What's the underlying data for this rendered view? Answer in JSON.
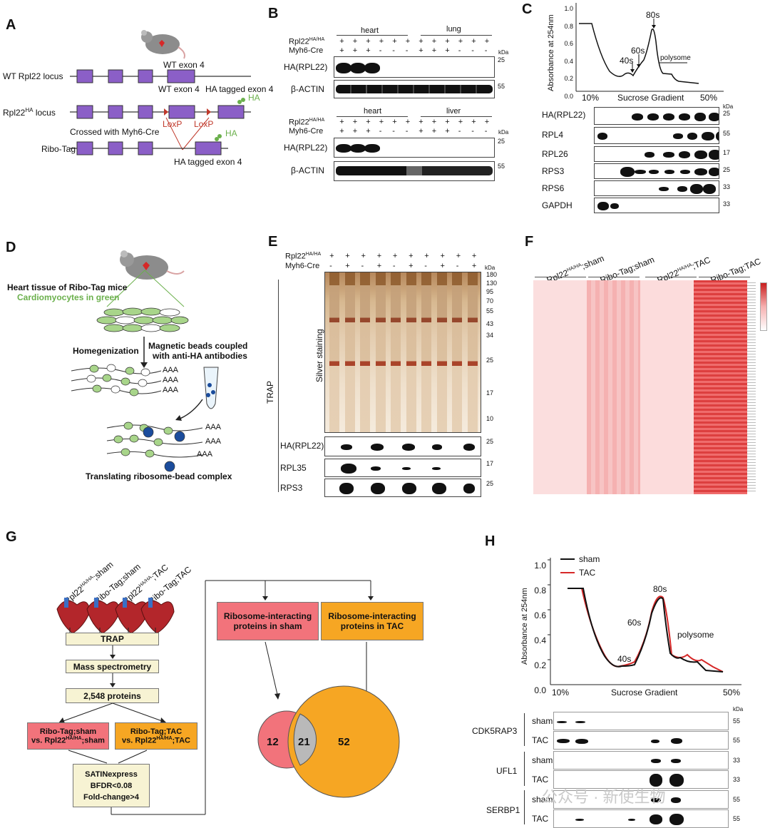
{
  "panels": {
    "A": "A",
    "B": "B",
    "C": "C",
    "D": "D",
    "E": "E",
    "F": "F",
    "G": "G",
    "H": "H"
  },
  "A": {
    "wt_locus": "WT Rpl22 locus",
    "ha_locus_pre": "Rpl22",
    "ha_locus_sup": "HA",
    "ha_locus_post": " locus",
    "wt_exon4_top": "WT exon 4",
    "wt_exon4": "WT exon 4",
    "ha_exon4": "HA tagged exon 4",
    "ha": "HA",
    "loxp": "LoxP",
    "crossed": "Crossed with Myh6-Cre",
    "ribotag": "Ribo-Tag",
    "ha_exon4_bottom": "HA tagged exon 4"
  },
  "B": {
    "genotype_pre": "Rpl22",
    "genotype_sup": "HA/HA",
    "cre": "Myh6-Cre",
    "top_tissue1": "heart",
    "top_tissue2": "lung",
    "bot_tissue1": "heart",
    "bot_tissue2": "liver",
    "signs_genotype": [
      "+",
      "+",
      "+",
      "+",
      "+",
      "+",
      "+",
      "+",
      "+",
      "+",
      "+",
      "+"
    ],
    "signs_cre": [
      "+",
      "+",
      "+",
      "-",
      "-",
      "-",
      "+",
      "+",
      "+",
      "-",
      "-",
      "-"
    ],
    "rows": [
      "HA(RPL22)",
      "β-ACTIN"
    ],
    "kda": "kDa",
    "m25": "25",
    "m55": "55"
  },
  "C": {
    "ylabel": "Absorbance at 254nm",
    "yticks": [
      "1.0",
      "0.8",
      "0.6",
      "0.4",
      "0.2",
      "0.0"
    ],
    "x_left": "10%",
    "x_mid": "Sucrose Gradient",
    "x_right": "50%",
    "peaks": [
      "40s",
      "60s",
      "80s",
      "polysome"
    ],
    "rows": [
      "HA(RPL22)",
      "RPL4",
      "RPL26",
      "RPS3",
      "RPS6",
      "GAPDH"
    ],
    "markers": [
      "25",
      "55",
      "17",
      "25",
      "33",
      "33"
    ],
    "kda": "kDa"
  },
  "D": {
    "title": "Heart tissue of Ribo-Tag mice",
    "subtitle": "Cardiomyocytes in green",
    "homogenization": "Homegenization",
    "beads": "Magnetic beads coupled",
    "beads2": "with anti-HA antibodies",
    "aaa": "AAA",
    "complex": "Translating ribosome-bead complex"
  },
  "E": {
    "genotype_pre": "Rpl22",
    "genotype_sup": "HA/HA",
    "cre": "Myh6-Cre",
    "signs_cre": [
      "-",
      "+",
      "-",
      "+",
      "-",
      "+",
      "-",
      "+",
      "-",
      "+"
    ],
    "silver": "Silver staining",
    "trap": "TRAP",
    "rows": [
      "HA(RPL22)",
      "RPL35",
      "RPS3"
    ],
    "markers": [
      "180",
      "130",
      "95",
      "70",
      "55",
      "43",
      "34",
      "25",
      "17",
      "10"
    ],
    "row_markers": [
      "25",
      "17",
      "25"
    ],
    "kda": "kDa"
  },
  "F": {
    "groups": [
      {
        "pre": "Rpl22",
        "sup": "HA/HA",
        "post": ";sham"
      },
      {
        "pre": "Ribo-Tag;sham",
        "sup": "",
        "post": ""
      },
      {
        "pre": "Rpl22",
        "sup": "HA/HA",
        "post": ";TAC"
      },
      {
        "pre": "Ribo-Tag;TAC",
        "sup": "",
        "post": ""
      }
    ]
  },
  "G": {
    "groups": [
      {
        "pre": "Rpl22",
        "sup": "HA/HA",
        "post": ";sham"
      },
      {
        "pre": "Ribo-Tag;sham",
        "sup": "",
        "post": ""
      },
      {
        "pre": "Rpl22",
        "sup": "HA/HA",
        "post": ";TAC"
      },
      {
        "pre": "Ribo-Tag;TAC",
        "sup": "",
        "post": ""
      }
    ],
    "trap": "TRAP",
    "ms": "Mass spectrometry",
    "proteins": "2,548 proteins",
    "cmp1_a": "Ribo-Tag;sham",
    "cmp1_b_pre": "vs. Rpl22",
    "cmp1_b_sup": "HA/HA",
    "cmp1_b_post": ";sham",
    "cmp2_a": "Ribo-Tag;TAC",
    "cmp2_b_pre": "vs. Rpl22",
    "cmp2_b_sup": "HA/HA",
    "cmp2_b_post": ";TAC",
    "satin1": "SATINexpress",
    "satin2": "BFDR<0.08",
    "satin3": "Fold-change>4",
    "sham_box1": "Ribosome-interacting",
    "sham_box2": "proteins in sham",
    "tac_box1": "Ribosome-interacting",
    "tac_box2": "proteins in TAC",
    "venn": {
      "sham_only": "12",
      "shared": "21",
      "tac_only": "52"
    }
  },
  "H": {
    "ylabel": "Absorbance at 254nm",
    "yticks": [
      "1.0",
      "0.8",
      "0.6",
      "0.4",
      "0.2",
      "0.0"
    ],
    "x_left": "10%",
    "x_mid": "Sucrose Gradient",
    "x_right": "50%",
    "legend": [
      "sham",
      "TAC"
    ],
    "peaks": [
      "40s",
      "60s",
      "80s",
      "polysome"
    ],
    "proteins": [
      "CDK5RAP3",
      "UFL1",
      "SERBP1"
    ],
    "rowlabels": [
      "sham",
      "TAC",
      "sham",
      "TAC",
      "sham",
      "TAC"
    ],
    "markers": [
      "55",
      "55",
      "33",
      "33",
      "55",
      "55"
    ],
    "kda": "kDa"
  },
  "colors": {
    "purple": "#8b5fc7",
    "red": "#d62828",
    "sham": "#f2737b",
    "tac": "#f6a623",
    "gray": "#b9b9b9",
    "beige": "#f7f3d3",
    "heat": "#f4a6a6",
    "green": "#6bb04c"
  },
  "watermark": "公众号 · 新使生物"
}
